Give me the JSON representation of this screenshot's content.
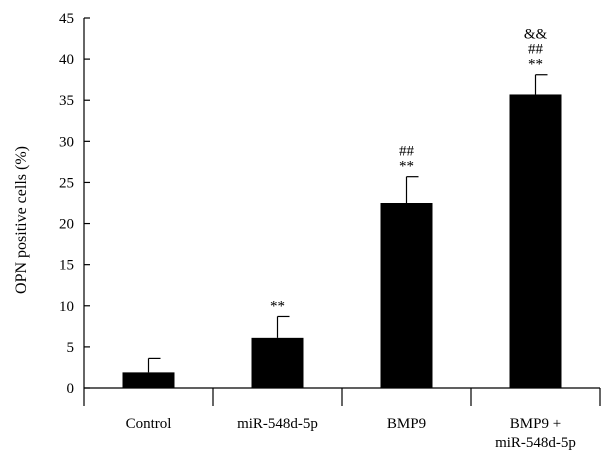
{
  "chart_data": {
    "type": "bar",
    "title": "",
    "xlabel": "",
    "ylabel": "OPN positive cells (%)",
    "ylim": [
      0,
      45
    ],
    "yticks": [
      0,
      5,
      10,
      15,
      20,
      25,
      30,
      35,
      40,
      45
    ],
    "grid": false,
    "categories": [
      [
        "Control"
      ],
      [
        "miR-548d-5p"
      ],
      [
        "BMP9"
      ],
      [
        "BMP9 +",
        "miR-548d-5p"
      ]
    ],
    "values": [
      1.9,
      6.1,
      22.5,
      35.7
    ],
    "errors": [
      1.7,
      2.6,
      3.2,
      2.4
    ],
    "annotations": [
      [],
      [
        "**"
      ],
      [
        "##",
        "**"
      ],
      [
        "&&",
        "##",
        "**"
      ]
    ],
    "bar_color": "#000000"
  }
}
